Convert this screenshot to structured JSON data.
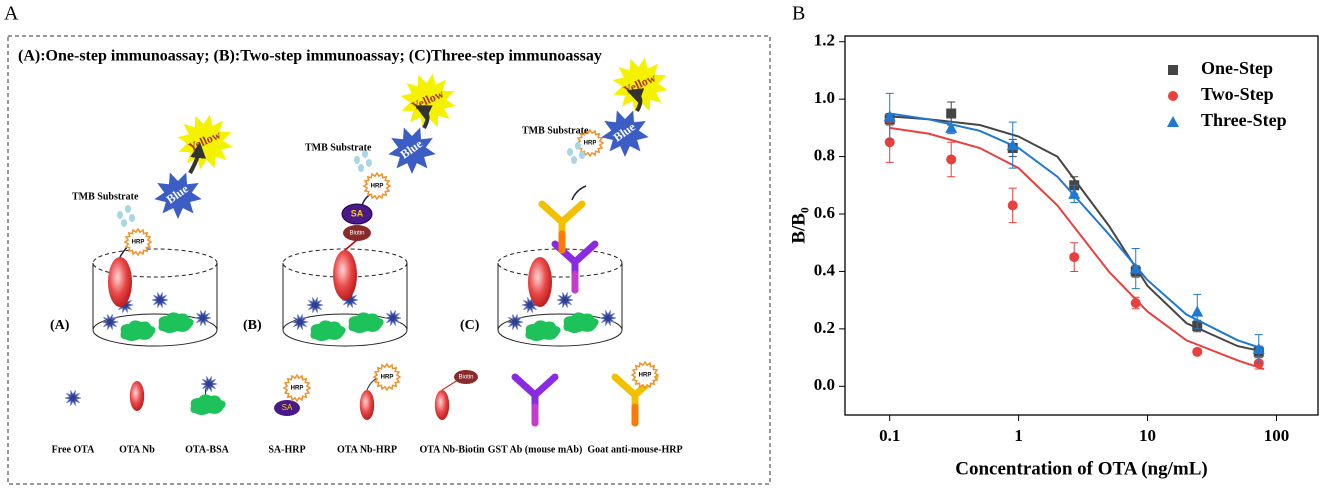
{
  "panel_labels": [
    "A",
    "B"
  ],
  "diagram": {
    "title": "(A):One-step immunoassay; (B):Two-step immunoassay; (C)Three-step immunoassay",
    "hrp": "HRP",
    "sa": "SA",
    "biotin": "Biotin",
    "panels": [
      {
        "label": "(A)",
        "substrate": "TMB Substrate",
        "blue": "Blue",
        "yellow": "Yellow"
      },
      {
        "label": "(B)",
        "substrate": "TMB Substrate",
        "blue": "Blue",
        "yellow": "Yellow"
      },
      {
        "label": "(C)",
        "substrate": "TMB Substrate",
        "blue": "Blue",
        "yellow": "Yellow"
      }
    ],
    "legend": [
      "Free OTA",
      "OTA Nb",
      "OTA-BSA",
      "SA-HRP",
      "OTA Nb-HRP",
      "OTA Nb-Biotin",
      "GST Ab (mouse mAb)",
      "Goat anti-mouse-HRP"
    ]
  },
  "chart_data": {
    "type": "scatter",
    "x_label": "Concentration of OTA (ng/mL)",
    "y_label": "B/B₀",
    "log_x": true,
    "xlim": [
      0.045,
      210
    ],
    "xticks": [
      0.1,
      1,
      10,
      100
    ],
    "ylim": [
      -0.1,
      1.22
    ],
    "yticks": [
      {
        "value": 0,
        "label": "0.0"
      },
      {
        "value": 0.2,
        "label": "0.2"
      },
      {
        "value": 0.4,
        "label": "0.4"
      },
      {
        "value": 0.6,
        "label": "0.6"
      },
      {
        "value": 0.8,
        "label": "0.8"
      },
      {
        "value": 1,
        "label": "1.0"
      },
      {
        "value": 1.2,
        "label": "1.2"
      }
    ],
    "legend": "upper right",
    "x": [
      0.1,
      0.3,
      0.9,
      2.7,
      8.1,
      24.3,
      72.9
    ],
    "fit_x": [
      0.1,
      0.2,
      0.5,
      1,
      2,
      5,
      10,
      20,
      50,
      80
    ],
    "series": [
      {
        "name": "One-Step",
        "color": "#454545",
        "marker": "square",
        "values": [
          0.93,
          0.95,
          0.83,
          0.7,
          0.4,
          0.21,
          0.12
        ],
        "errors": [
          0.02,
          0.04,
          0.03,
          0.03,
          0.02,
          0.02,
          0.02
        ],
        "fit_values": [
          0.94,
          0.93,
          0.91,
          0.87,
          0.8,
          0.56,
          0.35,
          0.22,
          0.14,
          0.12
        ]
      },
      {
        "name": "Two-Step",
        "color": "#e8403d",
        "marker": "circle",
        "values": [
          0.85,
          0.79,
          0.63,
          0.45,
          0.29,
          0.12,
          0.08
        ],
        "errors": [
          0.07,
          0.06,
          0.06,
          0.05,
          0.02,
          0.01,
          0.02
        ],
        "fit_values": [
          0.9,
          0.88,
          0.83,
          0.76,
          0.63,
          0.4,
          0.26,
          0.16,
          0.09,
          0.06
        ]
      },
      {
        "name": "Three-Step",
        "color": "#1f78d1",
        "marker": "triangle",
        "values": [
          0.94,
          0.9,
          0.84,
          0.67,
          0.41,
          0.26,
          0.13
        ],
        "errors": [
          0.08,
          0.02,
          0.08,
          0.03,
          0.07,
          0.06,
          0.05
        ],
        "fit_values": [
          0.95,
          0.93,
          0.89,
          0.83,
          0.73,
          0.53,
          0.37,
          0.25,
          0.16,
          0.13
        ]
      }
    ]
  }
}
